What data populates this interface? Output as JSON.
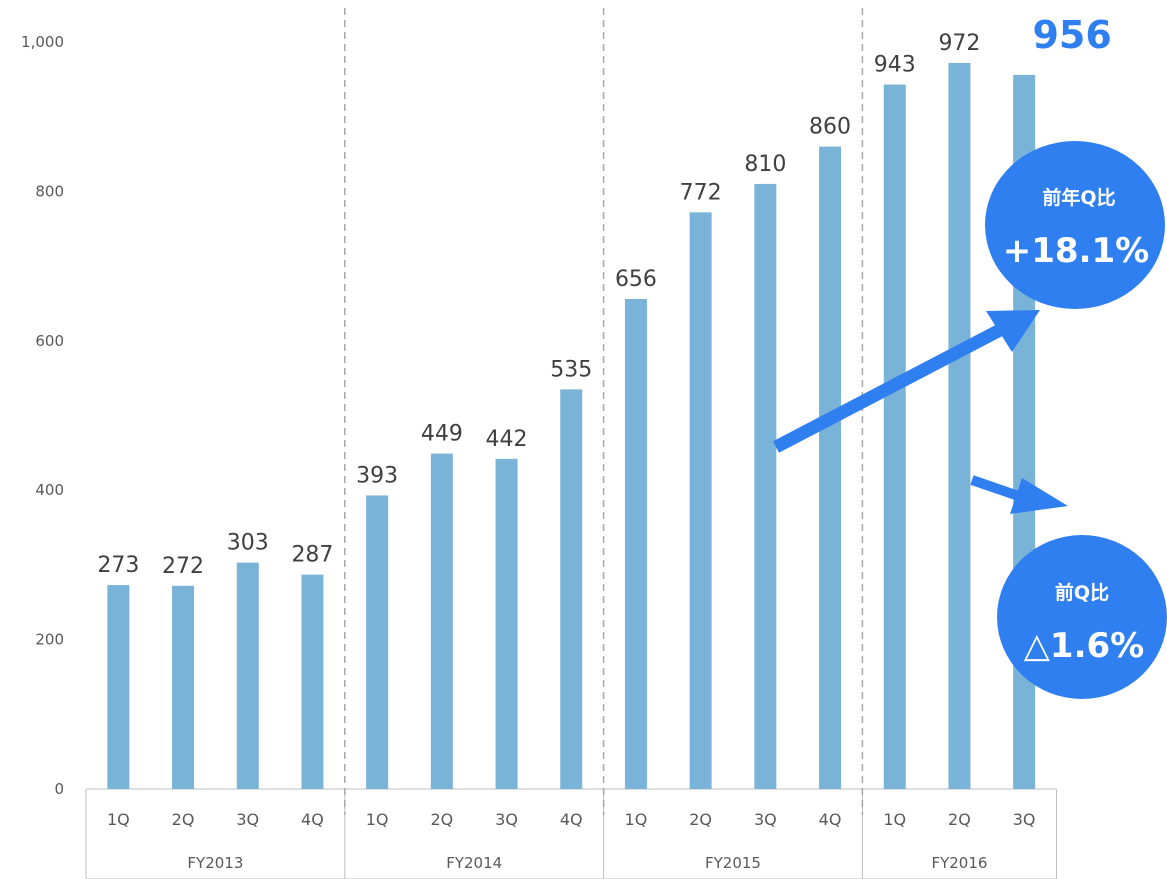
{
  "chart_data": {
    "type": "bar",
    "title": "",
    "xlabel": "",
    "ylabel": "",
    "ylim": [
      0,
      1000
    ],
    "yticks": [
      "0",
      "200",
      "400",
      "600",
      "800",
      "1,000"
    ],
    "grid": false,
    "groups": [
      {
        "label": "FY2013",
        "categories": [
          "1Q",
          "2Q",
          "3Q",
          "4Q"
        ],
        "values": [
          273,
          272,
          303,
          287
        ]
      },
      {
        "label": "FY2014",
        "categories": [
          "1Q",
          "2Q",
          "3Q",
          "4Q"
        ],
        "values": [
          393,
          449,
          442,
          535
        ]
      },
      {
        "label": "FY2015",
        "categories": [
          "1Q",
          "2Q",
          "3Q",
          "4Q"
        ],
        "values": [
          656,
          772,
          810,
          860
        ]
      },
      {
        "label": "FY2016",
        "categories": [
          "1Q",
          "2Q",
          "3Q"
        ],
        "values": [
          943,
          972,
          956
        ]
      }
    ],
    "highlight_value_label": "956",
    "callouts": [
      {
        "title": "前年Q比",
        "value": "+18.1%"
      },
      {
        "title": "前Q比",
        "value": "△1.6%"
      }
    ]
  },
  "colors": {
    "bar": "#7ab3d8",
    "highlight": "#2f7ff0",
    "callout": "#2f7ff0",
    "axis": "#bfbfbf",
    "divider": "#a6a6a6"
  }
}
